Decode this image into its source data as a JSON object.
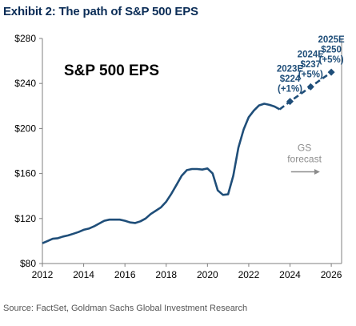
{
  "exhibit_title": "Exhibit 2: The path of S&P 500 EPS",
  "source": "Source: FactSet, Goldman Sachs Global Investment Research",
  "chart_data": {
    "type": "line",
    "title": "S&P 500 EPS",
    "xlabel": "",
    "ylabel": "",
    "xlim": [
      2012,
      2026.5
    ],
    "ylim": [
      80,
      280
    ],
    "x_ticks": [
      2012,
      2014,
      2016,
      2018,
      2020,
      2022,
      2024,
      2026
    ],
    "y_ticks": [
      80,
      120,
      160,
      200,
      240,
      280
    ],
    "y_tick_labels": [
      "$80",
      "$120",
      "$160",
      "$200",
      "$240",
      "$280"
    ],
    "grid": false,
    "colors": {
      "line": "#1f4e79",
      "forecast": "#1f4e79",
      "text": "#1f4e79",
      "axis": "#7f7f7f",
      "arrow": "#8c8c8c"
    },
    "series": [
      {
        "style": "solid",
        "points": [
          [
            2012.0,
            98
          ],
          [
            2012.25,
            100
          ],
          [
            2012.5,
            102
          ],
          [
            2012.75,
            102.5
          ],
          [
            2013.0,
            104
          ],
          [
            2013.25,
            105
          ],
          [
            2013.5,
            106.5
          ],
          [
            2013.75,
            108
          ],
          [
            2014.0,
            110
          ],
          [
            2014.25,
            111
          ],
          [
            2014.5,
            113
          ],
          [
            2014.75,
            115.5
          ],
          [
            2015.0,
            118
          ],
          [
            2015.25,
            119
          ],
          [
            2015.5,
            119
          ],
          [
            2015.75,
            119
          ],
          [
            2016.0,
            118
          ],
          [
            2016.25,
            116.5
          ],
          [
            2016.5,
            116
          ],
          [
            2016.75,
            117.5
          ],
          [
            2017.0,
            120
          ],
          [
            2017.25,
            124
          ],
          [
            2017.5,
            127
          ],
          [
            2017.75,
            130
          ],
          [
            2018.0,
            135
          ],
          [
            2018.25,
            142
          ],
          [
            2018.5,
            150
          ],
          [
            2018.75,
            158
          ],
          [
            2019.0,
            163
          ],
          [
            2019.25,
            164
          ],
          [
            2019.5,
            164
          ],
          [
            2019.75,
            163.5
          ],
          [
            2020.0,
            164.5
          ],
          [
            2020.25,
            160
          ],
          [
            2020.5,
            145
          ],
          [
            2020.75,
            141
          ],
          [
            2021.0,
            141.5
          ],
          [
            2021.25,
            158
          ],
          [
            2021.5,
            183
          ],
          [
            2021.75,
            199
          ],
          [
            2022.0,
            210
          ],
          [
            2022.25,
            216
          ],
          [
            2022.5,
            220.5
          ],
          [
            2022.75,
            222
          ],
          [
            2023.0,
            221
          ],
          [
            2023.25,
            219.5
          ],
          [
            2023.5,
            217
          ]
        ]
      },
      {
        "style": "dashed",
        "points": [
          [
            2023.5,
            217
          ],
          [
            2024.0,
            224
          ],
          [
            2025.0,
            237
          ],
          [
            2026.0,
            250
          ]
        ]
      }
    ],
    "markers": [
      [
        2024.0,
        224
      ],
      [
        2025.0,
        237
      ],
      [
        2026.0,
        250
      ]
    ],
    "annotations": [
      {
        "x": 2024.0,
        "y": 224,
        "lines": [
          "2023E",
          "$224",
          "(+1%)"
        ]
      },
      {
        "x": 2025.0,
        "y": 237,
        "lines": [
          "2024E",
          "$237",
          "(+5%)"
        ]
      },
      {
        "x": 2026.0,
        "y": 250,
        "lines": [
          "2025E",
          "$250",
          "(+5%)"
        ]
      }
    ],
    "forecast_note": {
      "lines": [
        "GS",
        "forecast"
      ]
    }
  }
}
